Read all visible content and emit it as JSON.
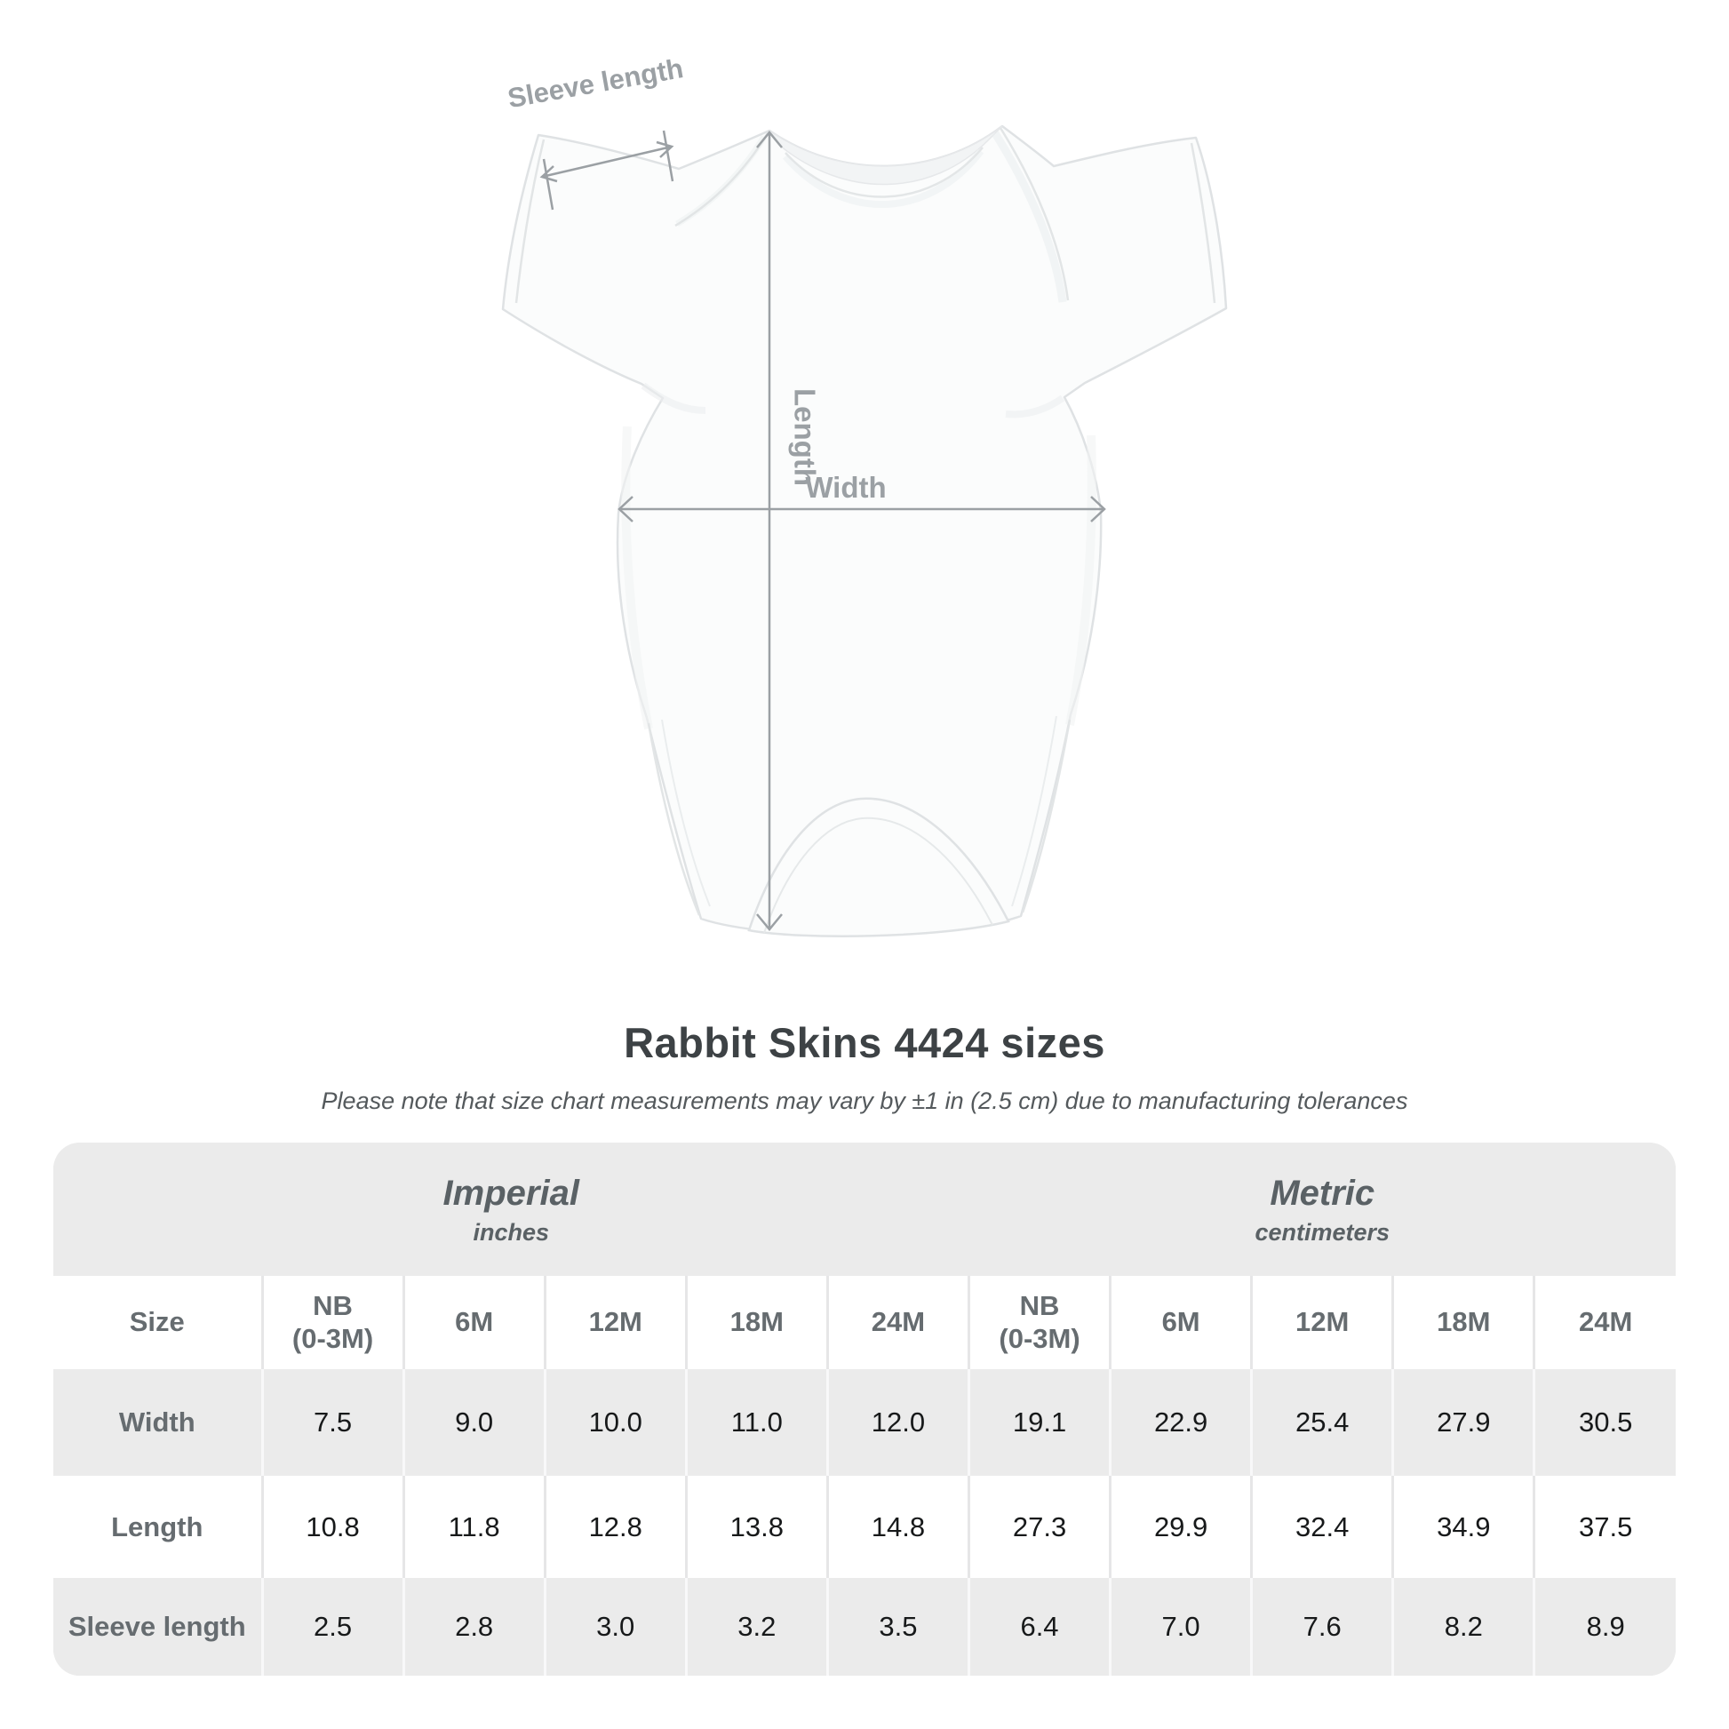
{
  "title": "Rabbit Skins 4424 sizes",
  "subtitle": "Please note that size chart measurements may vary by ±1 in (2.5 cm) due to manufacturing tolerances",
  "figure": {
    "labels": {
      "sleeve_length": "Sleeve length",
      "length": "Length",
      "width": "Width"
    }
  },
  "colors": {
    "table_band_gray": "#ebebeb",
    "label_text": "#666c70",
    "value_text": "#17191a",
    "annotation_gray": "#9ba0a4",
    "title_text": "#3d4245"
  },
  "table": {
    "unit_groups": [
      {
        "name": "Imperial",
        "unit": "inches"
      },
      {
        "name": "Metric",
        "unit": "centimeters"
      }
    ],
    "size_header": "Size",
    "columns": [
      {
        "l1": "NB",
        "l2": "(0-3M)"
      },
      {
        "l1": "6M"
      },
      {
        "l1": "12M"
      },
      {
        "l1": "18M"
      },
      {
        "l1": "24M"
      }
    ],
    "rows": [
      {
        "label": "Width",
        "imperial": [
          "7.5",
          "9.0",
          "10.0",
          "11.0",
          "12.0"
        ],
        "metric": [
          "19.1",
          "22.9",
          "25.4",
          "27.9",
          "30.5"
        ]
      },
      {
        "label": "Length",
        "imperial": [
          "10.8",
          "11.8",
          "12.8",
          "13.8",
          "14.8"
        ],
        "metric": [
          "27.3",
          "29.9",
          "32.4",
          "34.9",
          "37.5"
        ]
      },
      {
        "label": "Sleeve length",
        "imperial": [
          "2.5",
          "2.8",
          "3.0",
          "3.2",
          "3.5"
        ],
        "metric": [
          "6.4",
          "7.0",
          "7.6",
          "8.2",
          "8.9"
        ]
      }
    ]
  },
  "chart_data": {
    "type": "table",
    "title": "Rabbit Skins 4424 sizes",
    "note": "Please note that size chart measurements may vary by ±1 in (2.5 cm) due to manufacturing tolerances",
    "columns": [
      "NB (0-3M)",
      "6M",
      "12M",
      "18M",
      "24M"
    ],
    "series": [
      {
        "name": "Width (inches)",
        "values": [
          7.5,
          9.0,
          10.0,
          11.0,
          12.0
        ]
      },
      {
        "name": "Length (inches)",
        "values": [
          10.8,
          11.8,
          12.8,
          13.8,
          14.8
        ]
      },
      {
        "name": "Sleeve length (inches)",
        "values": [
          2.5,
          2.8,
          3.0,
          3.2,
          3.5
        ]
      },
      {
        "name": "Width (cm)",
        "values": [
          19.1,
          22.9,
          25.4,
          27.9,
          30.5
        ]
      },
      {
        "name": "Length (cm)",
        "values": [
          27.3,
          29.9,
          32.4,
          34.9,
          37.5
        ]
      },
      {
        "name": "Sleeve length (cm)",
        "values": [
          6.4,
          7.0,
          7.6,
          8.2,
          8.9
        ]
      }
    ]
  }
}
